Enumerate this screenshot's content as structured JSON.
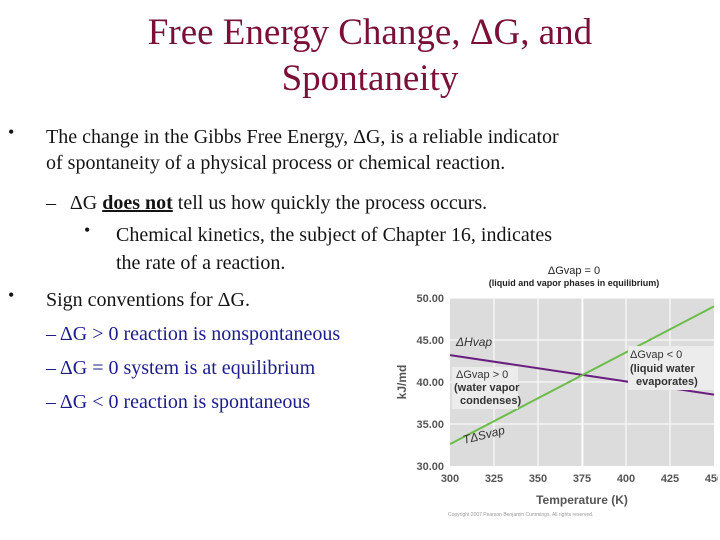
{
  "slide": {
    "title_line1": "Free Energy Change, ΔG, and",
    "title_line2": "Spontaneity",
    "bullet1_line1": "The change in the Gibbs Free Energy, ΔG, is a reliable indicator",
    "bullet1_line2": "of spontaneity of a physical process or chemical reaction.",
    "sub_dash": "–",
    "sub_pre": "ΔG ",
    "sub_bold": "does not",
    "sub_post": " tell us how quickly the process occurs.",
    "subsub_line1": "Chemical kinetics, the subject of Chapter 16, indicates",
    "subsub_line2": "the rate of a reaction.",
    "bullet2": "Sign conventions for ΔG.",
    "conv1": "– ΔG > 0  reaction is nonspontaneous",
    "conv2": "– ΔG = 0  system is at equilibrium",
    "conv3": "– ΔG < 0  reaction is spontaneous",
    "bullet_char": "•",
    "subbullet_char": "•"
  },
  "chart_data": {
    "type": "line",
    "xlabel": "Temperature (K)",
    "ylabel": "kJ/md",
    "xlim": [
      300,
      450
    ],
    "ylim": [
      30,
      50
    ],
    "x_ticks": [
      "300",
      "325",
      "350",
      "375",
      "400",
      "425",
      "450"
    ],
    "y_ticks": [
      "30.00",
      "35.00",
      "40.00",
      "45.00",
      "50.00"
    ],
    "grid": true,
    "series": [
      {
        "name": "ΔHvap",
        "x": [
          300,
          450
        ],
        "y": [
          43.2,
          38.5
        ],
        "color": "#6a1f80"
      },
      {
        "name": "TΔSvap",
        "x": [
          300,
          450
        ],
        "y": [
          32.6,
          49.0
        ],
        "color": "#6bbd4a"
      }
    ],
    "annotations": {
      "top_main": "ΔGvap = 0",
      "top_sub": "(liquid and vapor phases in equilibrium)",
      "right1": "ΔGvap < 0",
      "right2": "(liquid water",
      "right3": "evaporates)",
      "left1": "ΔGvap > 0",
      "left2": "(water vapor",
      "left3": "condenses)",
      "dh": "ΔHvap",
      "tds": "TΔSvap",
      "copyright": "Copyright 2007 Pearson Benjamin Cummings. All rights reserved."
    }
  }
}
